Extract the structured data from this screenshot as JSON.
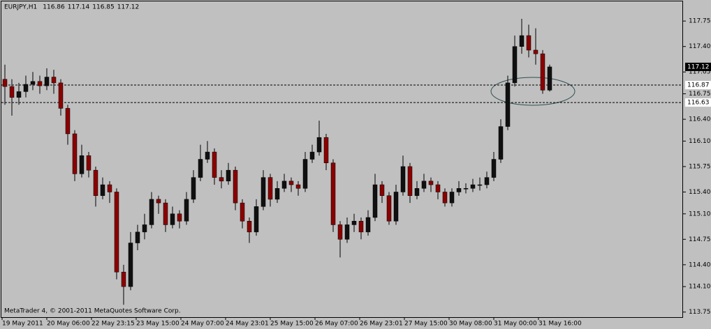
{
  "chart_data": {
    "type": "candlestick",
    "symbol": "EURJPY,H1",
    "quote": [
      116.86,
      117.14,
      116.85,
      117.12
    ],
    "footer": "MetaTrader 4, © 2001-2011 MetaQuotes Software Corp.",
    "up_color": "#101010",
    "down_color": "#8b0000",
    "open": [
      116.95,
      116.85,
      116.7,
      116.78,
      116.88,
      116.92,
      116.86,
      116.98,
      116.9,
      116.55,
      116.2,
      115.65,
      115.9,
      115.7,
      115.35,
      115.5,
      115.4,
      114.3,
      114.1,
      114.7,
      114.85,
      114.95,
      115.3,
      115.25,
      114.95,
      115.1,
      115.0,
      115.3,
      115.6,
      115.85,
      115.95,
      115.6,
      115.55,
      115.7,
      115.25,
      115.0,
      114.85,
      115.2,
      115.6,
      115.3,
      115.45,
      115.55,
      115.5,
      115.45,
      115.85,
      115.95,
      116.15,
      115.8,
      114.95,
      114.75,
      114.95,
      115.0,
      114.85,
      115.05,
      115.5,
      115.35,
      115.0,
      115.4,
      115.75,
      115.35,
      115.45,
      115.55,
      115.5,
      115.4,
      115.25,
      115.4,
      115.45,
      115.45,
      115.5,
      115.5,
      115.6,
      115.85,
      116.3,
      116.9,
      117.4,
      117.55,
      117.35,
      117.3,
      116.8
    ],
    "high": [
      117.15,
      116.95,
      116.9,
      117.0,
      117.05,
      117.0,
      117.1,
      117.08,
      116.95,
      116.6,
      116.25,
      116.05,
      115.95,
      115.75,
      115.6,
      115.55,
      115.45,
      114.4,
      114.85,
      114.95,
      115.1,
      115.4,
      115.35,
      115.3,
      115.2,
      115.15,
      115.4,
      115.7,
      116.05,
      116.1,
      116.0,
      115.7,
      115.8,
      115.75,
      115.3,
      115.05,
      115.3,
      115.7,
      115.65,
      115.55,
      115.65,
      115.6,
      115.55,
      115.95,
      116.05,
      116.38,
      116.2,
      115.85,
      115.0,
      115.05,
      115.1,
      115.05,
      115.15,
      115.65,
      115.55,
      115.4,
      115.5,
      115.9,
      115.8,
      115.55,
      115.65,
      115.6,
      115.55,
      115.45,
      115.45,
      115.55,
      115.52,
      115.58,
      115.6,
      115.68,
      115.95,
      116.4,
      117.0,
      117.55,
      117.78,
      117.7,
      117.65,
      117.35,
      117.15
    ],
    "low": [
      116.6,
      116.45,
      116.6,
      116.7,
      116.8,
      116.75,
      116.8,
      116.75,
      116.45,
      116.05,
      115.55,
      115.6,
      115.6,
      115.2,
      115.3,
      115.25,
      114.2,
      113.85,
      114.05,
      114.6,
      114.75,
      114.9,
      115.1,
      114.85,
      114.9,
      114.9,
      114.95,
      115.25,
      115.55,
      115.8,
      115.5,
      115.45,
      115.5,
      115.15,
      114.9,
      114.7,
      114.8,
      115.15,
      115.2,
      115.25,
      115.4,
      115.4,
      115.35,
      115.4,
      115.8,
      115.9,
      115.7,
      114.85,
      114.5,
      114.7,
      114.85,
      114.75,
      114.8,
      115.0,
      115.25,
      114.95,
      114.95,
      115.35,
      115.25,
      115.3,
      115.4,
      115.4,
      115.3,
      115.2,
      115.2,
      115.35,
      115.38,
      115.4,
      115.42,
      115.45,
      115.55,
      115.8,
      116.25,
      116.85,
      117.3,
      117.25,
      117.15,
      116.75,
      116.78
    ],
    "close": [
      116.85,
      116.7,
      116.78,
      116.88,
      116.92,
      116.86,
      116.98,
      116.9,
      116.55,
      116.2,
      115.65,
      115.9,
      115.7,
      115.35,
      115.5,
      115.4,
      114.3,
      114.1,
      114.7,
      114.85,
      114.95,
      115.3,
      115.25,
      114.95,
      115.1,
      115.0,
      115.3,
      115.6,
      115.85,
      115.95,
      115.6,
      115.55,
      115.7,
      115.25,
      115.0,
      114.85,
      115.2,
      115.6,
      115.3,
      115.45,
      115.55,
      115.5,
      115.45,
      115.85,
      115.95,
      116.15,
      115.8,
      114.95,
      114.75,
      114.95,
      115.0,
      114.85,
      115.05,
      115.5,
      115.35,
      115.0,
      115.4,
      115.75,
      115.35,
      115.45,
      115.55,
      115.5,
      115.4,
      115.25,
      115.4,
      115.45,
      115.45,
      115.5,
      115.5,
      115.6,
      115.85,
      116.3,
      116.9,
      117.4,
      117.55,
      117.35,
      117.3,
      116.8,
      117.12
    ],
    "levels": [
      116.87,
      116.63
    ],
    "ylim": [
      113.68,
      118.02
    ],
    "yticks": [
      117.75,
      {
        "value": 117.4,
        "label": "117.40"
      },
      {
        "value": 117.05,
        "label": "117.05"
      },
      116.75,
      {
        "value": 116.4,
        "label": "116.40"
      },
      {
        "value": 116.1,
        "label": "116.10"
      },
      115.75,
      {
        "value": 115.4,
        "label": "115.40"
      },
      {
        "value": 115.1,
        "label": "115.10"
      },
      114.75,
      {
        "value": 114.4,
        "label": "114.40"
      },
      {
        "value": 114.1,
        "label": "114.10"
      },
      113.75
    ],
    "time_labels": [
      "19 May 2011",
      "20 May 06:00",
      "22 May 23:15",
      "23 May 15:00",
      "24 May 07:00",
      "24 May 23:01",
      "25 May 15:00",
      "26 May 07:00",
      "26 May 23:01",
      "27 May 15:00",
      "30 May 08:00",
      "31 May 00:00",
      "31 May 16:00"
    ]
  }
}
